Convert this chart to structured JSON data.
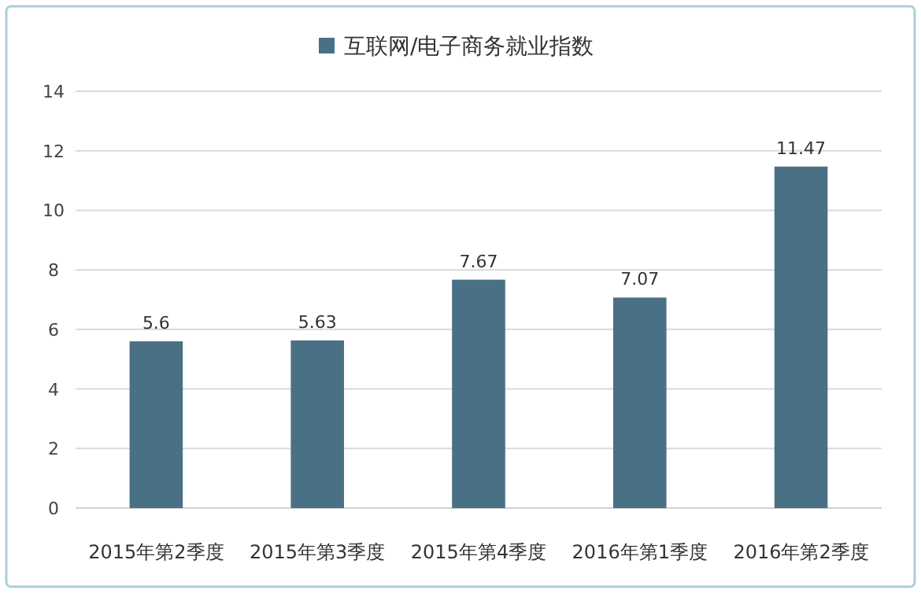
{
  "chart_data": {
    "type": "bar",
    "categories": [
      "2015年第2季度",
      "2015年第3季度",
      "2015年第4季度",
      "2016年第1季度",
      "2016年第2季度"
    ],
    "series": [
      {
        "name": "互联网/电子商务就业指数",
        "color": "#4a7086",
        "values": [
          5.6,
          5.63,
          7.67,
          7.07,
          11.47
        ]
      }
    ],
    "ylim": [
      0,
      14
    ],
    "yticks": [
      0,
      2,
      4,
      6,
      8,
      10,
      12,
      14
    ],
    "grid": "y",
    "legend": "top",
    "data_labels": true
  }
}
